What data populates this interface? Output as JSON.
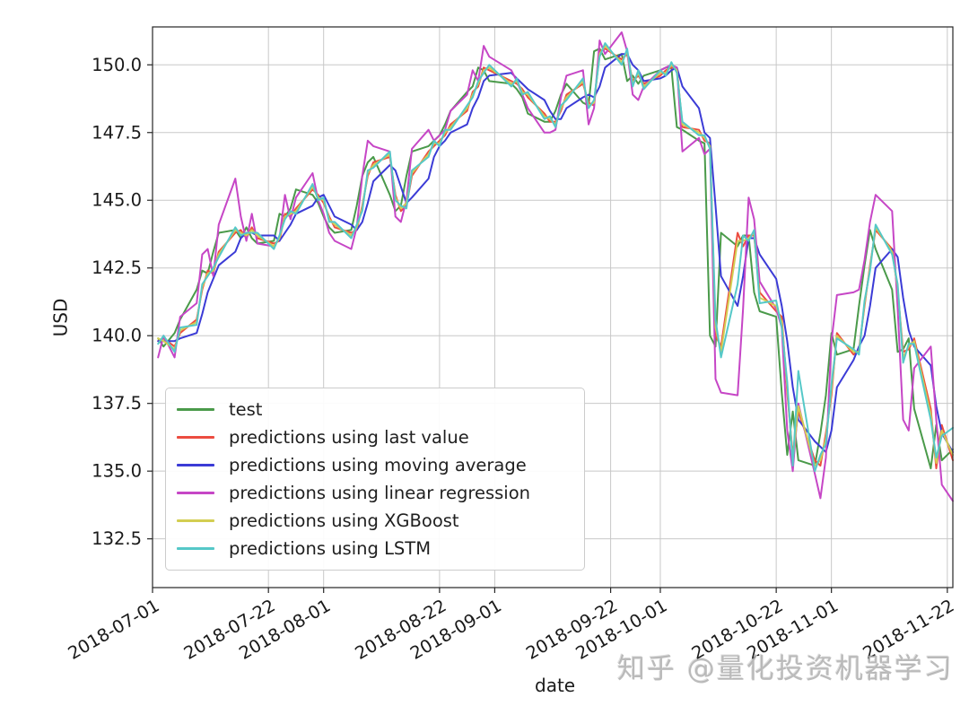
{
  "watermark": {
    "text": "知乎 @量化投资机器学习"
  },
  "chart_data": {
    "type": "line",
    "title": "",
    "xlabel": "date",
    "ylabel": "USD",
    "grid": true,
    "legend_position": "lower left",
    "ylim": [
      130.7,
      151.4
    ],
    "xlim_dates": [
      "2018-07-01",
      "2018-11-23"
    ],
    "y_ticks": [
      132.5,
      135.0,
      137.5,
      140.0,
      142.5,
      145.0,
      147.5,
      150.0
    ],
    "x_tick_labels": [
      "2018-07-01",
      "2018-07-22",
      "2018-08-01",
      "2018-08-22",
      "2018-09-01",
      "2018-09-22",
      "2018-10-01",
      "2018-10-22",
      "2018-11-01",
      "2018-11-22"
    ],
    "style": {
      "grid_color": "#c8c8c8",
      "spine_color": "#262626",
      "text_color": "#1a1a1a",
      "watermark_color": "#a7a7a7",
      "line_width": 2
    },
    "dates": [
      "2018-07-02",
      "2018-07-03",
      "2018-07-05",
      "2018-07-06",
      "2018-07-09",
      "2018-07-10",
      "2018-07-11",
      "2018-07-12",
      "2018-07-13",
      "2018-07-16",
      "2018-07-17",
      "2018-07-18",
      "2018-07-19",
      "2018-07-20",
      "2018-07-23",
      "2018-07-24",
      "2018-07-25",
      "2018-07-26",
      "2018-07-27",
      "2018-07-30",
      "2018-07-31",
      "2018-08-01",
      "2018-08-02",
      "2018-08-03",
      "2018-08-06",
      "2018-08-07",
      "2018-08-08",
      "2018-08-09",
      "2018-08-10",
      "2018-08-13",
      "2018-08-14",
      "2018-08-15",
      "2018-08-16",
      "2018-08-17",
      "2018-08-20",
      "2018-08-21",
      "2018-08-22",
      "2018-08-23",
      "2018-08-24",
      "2018-08-27",
      "2018-08-28",
      "2018-08-29",
      "2018-08-30",
      "2018-08-31",
      "2018-09-04",
      "2018-09-05",
      "2018-09-06",
      "2018-09-07",
      "2018-09-10",
      "2018-09-11",
      "2018-09-12",
      "2018-09-13",
      "2018-09-14",
      "2018-09-17",
      "2018-09-18",
      "2018-09-19",
      "2018-09-20",
      "2018-09-21",
      "2018-09-24",
      "2018-09-25",
      "2018-09-26",
      "2018-09-27",
      "2018-09-28",
      "2018-10-01",
      "2018-10-02",
      "2018-10-03",
      "2018-10-04",
      "2018-10-05",
      "2018-10-08",
      "2018-10-09",
      "2018-10-10",
      "2018-10-11",
      "2018-10-12",
      "2018-10-15",
      "2018-10-16",
      "2018-10-17",
      "2018-10-18",
      "2018-10-19",
      "2018-10-22",
      "2018-10-23",
      "2018-10-24",
      "2018-10-25",
      "2018-10-26",
      "2018-10-29",
      "2018-10-30",
      "2018-10-31",
      "2018-11-01",
      "2018-11-02",
      "2018-11-05",
      "2018-11-06",
      "2018-11-07",
      "2018-11-08",
      "2018-11-09",
      "2018-11-12",
      "2018-11-13",
      "2018-11-14",
      "2018-11-15",
      "2018-11-16",
      "2018-11-19",
      "2018-11-20",
      "2018-11-21",
      "2018-11-23"
    ],
    "series": [
      {
        "name": "test",
        "color": "#4a9a4a",
        "values": [
          139.9,
          139.6,
          140.1,
          140.6,
          141.7,
          142.4,
          142.3,
          143.1,
          143.8,
          143.9,
          143.6,
          144.0,
          143.6,
          143.4,
          143.5,
          144.5,
          144.4,
          144.7,
          145.4,
          145.2,
          144.9,
          144.4,
          144.0,
          143.8,
          143.9,
          144.8,
          145.9,
          146.4,
          146.6,
          145.2,
          144.6,
          144.8,
          145.9,
          146.8,
          147.0,
          147.2,
          147.4,
          147.8,
          148.3,
          149.0,
          149.2,
          149.9,
          149.8,
          149.4,
          149.3,
          149.1,
          148.8,
          148.2,
          147.9,
          147.9,
          148.3,
          148.9,
          149.3,
          148.6,
          148.5,
          150.5,
          150.6,
          150.2,
          150.4,
          149.4,
          149.6,
          149.3,
          149.6,
          149.8,
          149.9,
          149.9,
          147.7,
          147.6,
          147.2,
          147.1,
          140.0,
          139.6,
          143.8,
          143.3,
          143.7,
          143.7,
          141.6,
          140.9,
          140.7,
          137.9,
          135.6,
          137.2,
          135.4,
          135.2,
          136.4,
          137.8,
          140.1,
          139.3,
          139.5,
          141.1,
          142.6,
          143.9,
          143.2,
          141.7,
          139.4,
          139.5,
          139.9,
          137.3,
          135.1,
          136.7,
          135.4,
          135.8
        ]
      },
      {
        "name": "predictions using last value",
        "color": "#ec4c40",
        "values": [
          139.8,
          139.9,
          139.6,
          140.1,
          140.6,
          141.7,
          142.4,
          142.3,
          143.1,
          143.8,
          143.9,
          143.6,
          144.0,
          143.6,
          143.4,
          143.5,
          144.5,
          144.4,
          144.7,
          145.4,
          145.2,
          144.9,
          144.4,
          144.0,
          143.8,
          143.9,
          144.8,
          145.9,
          146.4,
          146.6,
          145.2,
          144.6,
          144.8,
          145.9,
          146.8,
          147.0,
          147.2,
          147.4,
          147.8,
          148.3,
          149.0,
          149.2,
          149.9,
          149.8,
          149.4,
          149.3,
          149.1,
          148.8,
          148.2,
          147.9,
          147.9,
          148.3,
          148.9,
          149.3,
          148.6,
          148.5,
          150.5,
          150.6,
          150.2,
          150.4,
          149.4,
          149.6,
          149.3,
          149.6,
          149.8,
          149.9,
          149.9,
          147.7,
          147.6,
          147.2,
          147.1,
          140.0,
          139.6,
          143.8,
          143.3,
          143.7,
          143.7,
          141.6,
          140.9,
          140.7,
          137.9,
          135.6,
          137.2,
          135.4,
          135.2,
          136.4,
          137.8,
          140.1,
          139.3,
          139.5,
          141.1,
          142.6,
          143.9,
          143.2,
          141.7,
          139.4,
          139.5,
          139.9,
          137.3,
          135.1,
          136.7,
          135.4
        ]
      },
      {
        "name": "predictions using moving average",
        "color": "#3b3bd6",
        "values": [
          139.8,
          139.8,
          139.8,
          139.9,
          140.1,
          140.8,
          141.6,
          142.1,
          142.6,
          143.1,
          143.6,
          143.8,
          143.8,
          143.7,
          143.7,
          143.5,
          143.8,
          144.1,
          144.5,
          144.8,
          145.1,
          145.2,
          144.8,
          144.4,
          144.1,
          143.9,
          144.2,
          144.9,
          145.7,
          146.3,
          146.1,
          145.5,
          144.9,
          145.1,
          145.8,
          146.6,
          147.0,
          147.2,
          147.5,
          147.8,
          148.4,
          148.8,
          149.4,
          149.6,
          149.7,
          149.5,
          149.3,
          149.1,
          148.7,
          148.3,
          148.0,
          148.0,
          148.4,
          148.8,
          148.9,
          148.8,
          149.2,
          149.9,
          150.4,
          150.4,
          150.0,
          149.8,
          149.4,
          149.5,
          149.6,
          149.8,
          149.9,
          149.2,
          148.4,
          147.5,
          147.3,
          144.8,
          142.2,
          141.1,
          142.2,
          143.6,
          143.6,
          143.0,
          142.1,
          141.1,
          139.8,
          138.1,
          136.9,
          136.1,
          135.9,
          135.7,
          136.5,
          138.1,
          139.1,
          139.6,
          140.0,
          141.1,
          142.5,
          143.2,
          142.9,
          141.4,
          140.2,
          139.6,
          138.9,
          137.4,
          136.4,
          135.7
        ]
      },
      {
        "name": "predictions using linear regression",
        "color": "#c646c6",
        "values": [
          139.2,
          140.0,
          139.2,
          140.7,
          141.2,
          143.0,
          143.2,
          142.2,
          144.1,
          145.8,
          144.4,
          143.5,
          144.5,
          143.4,
          143.3,
          143.6,
          145.2,
          144.3,
          145.1,
          146.0,
          145.0,
          144.5,
          143.8,
          143.5,
          143.2,
          144.0,
          145.9,
          147.2,
          147.0,
          146.8,
          144.4,
          144.2,
          145.0,
          146.9,
          147.6,
          147.2,
          147.4,
          147.6,
          148.3,
          148.9,
          149.8,
          149.4,
          150.7,
          150.3,
          149.8,
          149.4,
          148.9,
          148.4,
          147.5,
          147.5,
          147.6,
          148.8,
          149.6,
          149.8,
          147.8,
          148.4,
          150.9,
          150.4,
          151.2,
          150.5,
          148.9,
          148.7,
          149.2,
          149.8,
          149.9,
          150.0,
          149.9,
          146.8,
          147.3,
          146.7,
          146.9,
          138.4,
          137.9,
          137.8,
          141.0,
          145.1,
          144.3,
          142.0,
          141.0,
          140.3,
          136.5,
          135.0,
          137.5,
          134.9,
          134.0,
          135.5,
          139.8,
          141.5,
          141.6,
          141.7,
          142.8,
          144.2,
          145.2,
          144.6,
          141.0,
          136.9,
          136.5,
          138.8,
          139.6,
          136.9,
          134.5,
          133.9
        ]
      },
      {
        "name": "predictions using XGBoost",
        "color": "#d3ce52",
        "values": [
          139.9,
          139.8,
          139.5,
          140.2,
          140.5,
          141.8,
          142.3,
          142.4,
          143.0,
          143.9,
          143.8,
          143.7,
          143.9,
          143.7,
          143.3,
          143.6,
          144.4,
          144.5,
          144.6,
          145.5,
          145.1,
          145.0,
          144.3,
          144.1,
          143.7,
          144.0,
          144.7,
          146.0,
          146.3,
          146.7,
          145.1,
          144.7,
          144.9,
          146.0,
          146.7,
          147.1,
          147.1,
          147.5,
          147.7,
          148.4,
          148.9,
          149.3,
          149.8,
          149.9,
          149.3,
          149.4,
          149.0,
          148.9,
          148.1,
          148.0,
          147.8,
          148.4,
          148.8,
          149.4,
          148.5,
          148.6,
          150.4,
          150.7,
          150.1,
          150.5,
          149.3,
          149.7,
          149.2,
          149.7,
          149.7,
          150.0,
          149.8,
          147.8,
          147.5,
          147.3,
          147.0,
          140.3,
          139.4,
          143.5,
          143.5,
          143.6,
          143.8,
          141.4,
          141.1,
          140.5,
          138.1,
          135.4,
          137.4,
          135.2,
          135.4,
          136.2,
          138.0,
          140.0,
          139.4,
          139.4,
          141.2,
          142.5,
          144.0,
          143.1,
          141.8,
          139.2,
          139.6,
          139.8,
          137.1,
          135.3,
          136.5,
          135.6
        ]
      },
      {
        "name": "predictions using LSTM",
        "color": "#55c8c8",
        "values": [
          139.7,
          140.0,
          139.4,
          140.3,
          140.4,
          141.9,
          142.2,
          142.5,
          142.9,
          144.0,
          143.7,
          143.8,
          143.8,
          143.8,
          143.2,
          143.7,
          144.3,
          144.6,
          144.5,
          145.6,
          145.0,
          145.1,
          144.2,
          144.2,
          143.6,
          144.1,
          144.6,
          146.1,
          146.2,
          146.8,
          145.0,
          144.8,
          144.7,
          146.1,
          146.6,
          147.2,
          147.0,
          147.6,
          147.6,
          148.5,
          148.8,
          149.4,
          149.7,
          150.0,
          149.2,
          149.5,
          148.9,
          149.0,
          148.0,
          148.1,
          147.7,
          148.5,
          148.7,
          149.5,
          148.4,
          148.7,
          150.3,
          150.8,
          150.0,
          150.6,
          149.2,
          149.8,
          149.1,
          149.8,
          149.6,
          150.1,
          149.7,
          147.9,
          147.4,
          147.4,
          146.9,
          140.6,
          139.2,
          141.9,
          143.7,
          143.5,
          143.9,
          141.2,
          141.3,
          140.3,
          138.3,
          135.2,
          138.7,
          135.0,
          135.6,
          136.0,
          138.2,
          139.9,
          139.5,
          139.3,
          141.3,
          142.4,
          144.1,
          143.0,
          141.9,
          139.0,
          139.7,
          139.7,
          136.9,
          135.5,
          136.3,
          136.6
        ]
      }
    ]
  }
}
